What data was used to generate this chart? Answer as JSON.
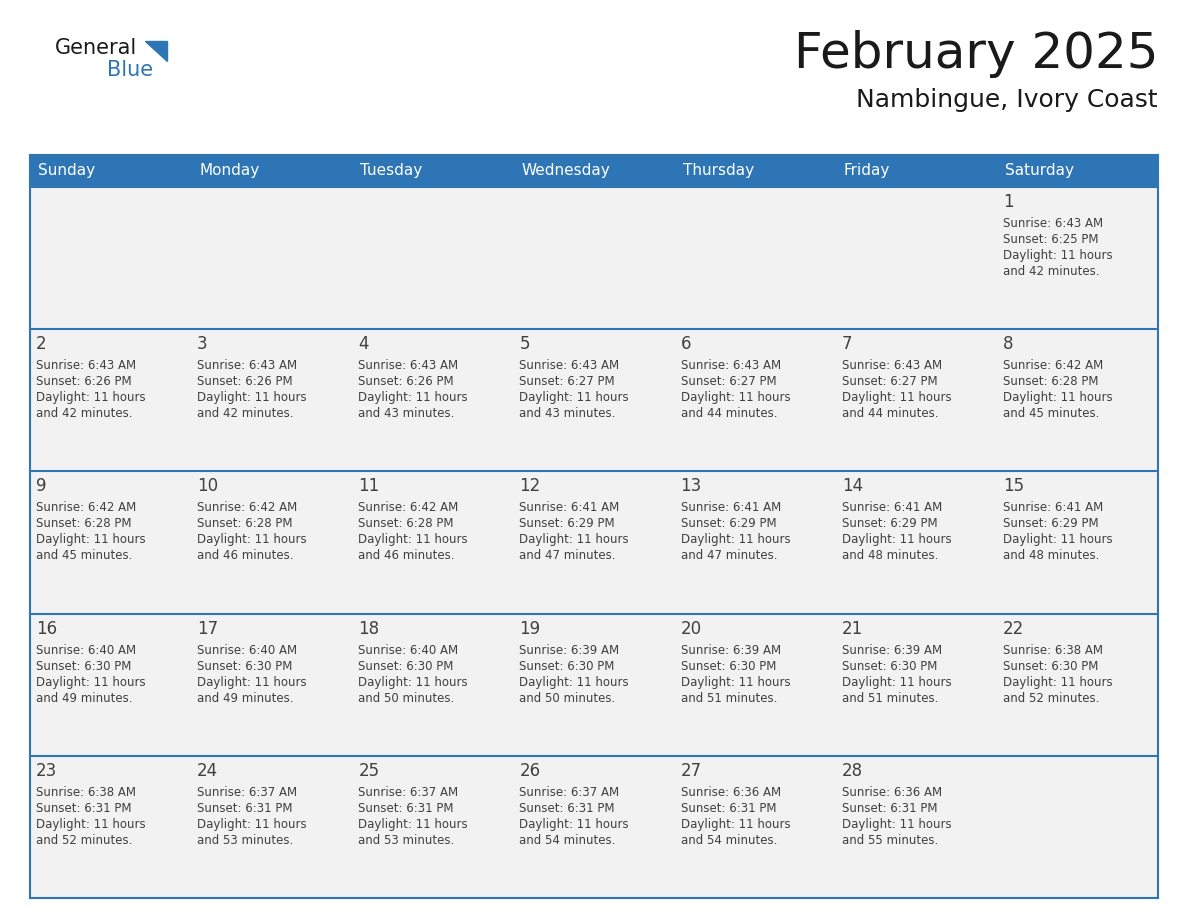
{
  "title": "February 2025",
  "subtitle": "Nambingue, Ivory Coast",
  "days_of_week": [
    "Sunday",
    "Monday",
    "Tuesday",
    "Wednesday",
    "Thursday",
    "Friday",
    "Saturday"
  ],
  "header_bg": "#2E75B6",
  "header_text": "#FFFFFF",
  "cell_bg": "#F2F2F2",
  "cell_bg_alt": "#FFFFFF",
  "grid_line_color": "#2E75B6",
  "day_num_color": "#404040",
  "cell_text_color": "#404040",
  "title_color": "#1a1a1a",
  "subtitle_color": "#1a1a1a",
  "logo_general_color": "#1a1a1a",
  "logo_blue_color": "#2E75B6",
  "calendar": [
    [
      null,
      null,
      null,
      null,
      null,
      null,
      1
    ],
    [
      2,
      3,
      4,
      5,
      6,
      7,
      8
    ],
    [
      9,
      10,
      11,
      12,
      13,
      14,
      15
    ],
    [
      16,
      17,
      18,
      19,
      20,
      21,
      22
    ],
    [
      23,
      24,
      25,
      26,
      27,
      28,
      null
    ]
  ],
  "sun_data": {
    "1": {
      "sunrise": "6:43 AM",
      "sunset": "6:25 PM",
      "daylight_h": "11",
      "daylight_m": "42"
    },
    "2": {
      "sunrise": "6:43 AM",
      "sunset": "6:26 PM",
      "daylight_h": "11",
      "daylight_m": "42"
    },
    "3": {
      "sunrise": "6:43 AM",
      "sunset": "6:26 PM",
      "daylight_h": "11",
      "daylight_m": "42"
    },
    "4": {
      "sunrise": "6:43 AM",
      "sunset": "6:26 PM",
      "daylight_h": "11",
      "daylight_m": "43"
    },
    "5": {
      "sunrise": "6:43 AM",
      "sunset": "6:27 PM",
      "daylight_h": "11",
      "daylight_m": "43"
    },
    "6": {
      "sunrise": "6:43 AM",
      "sunset": "6:27 PM",
      "daylight_h": "11",
      "daylight_m": "44"
    },
    "7": {
      "sunrise": "6:43 AM",
      "sunset": "6:27 PM",
      "daylight_h": "11",
      "daylight_m": "44"
    },
    "8": {
      "sunrise": "6:42 AM",
      "sunset": "6:28 PM",
      "daylight_h": "11",
      "daylight_m": "45"
    },
    "9": {
      "sunrise": "6:42 AM",
      "sunset": "6:28 PM",
      "daylight_h": "11",
      "daylight_m": "45"
    },
    "10": {
      "sunrise": "6:42 AM",
      "sunset": "6:28 PM",
      "daylight_h": "11",
      "daylight_m": "46"
    },
    "11": {
      "sunrise": "6:42 AM",
      "sunset": "6:28 PM",
      "daylight_h": "11",
      "daylight_m": "46"
    },
    "12": {
      "sunrise": "6:41 AM",
      "sunset": "6:29 PM",
      "daylight_h": "11",
      "daylight_m": "47"
    },
    "13": {
      "sunrise": "6:41 AM",
      "sunset": "6:29 PM",
      "daylight_h": "11",
      "daylight_m": "47"
    },
    "14": {
      "sunrise": "6:41 AM",
      "sunset": "6:29 PM",
      "daylight_h": "11",
      "daylight_m": "48"
    },
    "15": {
      "sunrise": "6:41 AM",
      "sunset": "6:29 PM",
      "daylight_h": "11",
      "daylight_m": "48"
    },
    "16": {
      "sunrise": "6:40 AM",
      "sunset": "6:30 PM",
      "daylight_h": "11",
      "daylight_m": "49"
    },
    "17": {
      "sunrise": "6:40 AM",
      "sunset": "6:30 PM",
      "daylight_h": "11",
      "daylight_m": "49"
    },
    "18": {
      "sunrise": "6:40 AM",
      "sunset": "6:30 PM",
      "daylight_h": "11",
      "daylight_m": "50"
    },
    "19": {
      "sunrise": "6:39 AM",
      "sunset": "6:30 PM",
      "daylight_h": "11",
      "daylight_m": "50"
    },
    "20": {
      "sunrise": "6:39 AM",
      "sunset": "6:30 PM",
      "daylight_h": "11",
      "daylight_m": "51"
    },
    "21": {
      "sunrise": "6:39 AM",
      "sunset": "6:30 PM",
      "daylight_h": "11",
      "daylight_m": "51"
    },
    "22": {
      "sunrise": "6:38 AM",
      "sunset": "6:30 PM",
      "daylight_h": "11",
      "daylight_m": "52"
    },
    "23": {
      "sunrise": "6:38 AM",
      "sunset": "6:31 PM",
      "daylight_h": "11",
      "daylight_m": "52"
    },
    "24": {
      "sunrise": "6:37 AM",
      "sunset": "6:31 PM",
      "daylight_h": "11",
      "daylight_m": "53"
    },
    "25": {
      "sunrise": "6:37 AM",
      "sunset": "6:31 PM",
      "daylight_h": "11",
      "daylight_m": "53"
    },
    "26": {
      "sunrise": "6:37 AM",
      "sunset": "6:31 PM",
      "daylight_h": "11",
      "daylight_m": "54"
    },
    "27": {
      "sunrise": "6:36 AM",
      "sunset": "6:31 PM",
      "daylight_h": "11",
      "daylight_m": "54"
    },
    "28": {
      "sunrise": "6:36 AM",
      "sunset": "6:31 PM",
      "daylight_h": "11",
      "daylight_m": "55"
    }
  }
}
